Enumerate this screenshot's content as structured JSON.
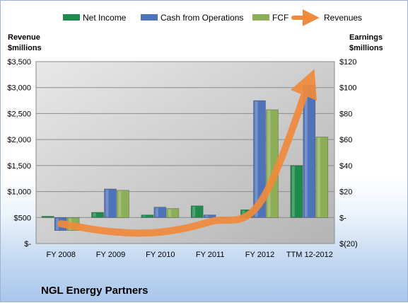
{
  "chart_data": {
    "type": "bar",
    "title": "NGL Energy Partners",
    "categories": [
      "FY 2008",
      "FY 2009",
      "FY 2010",
      "FY 2011",
      "FY 2012",
      "TTM 12-2012"
    ],
    "left_axis": {
      "label_line1": "Revenue",
      "label_line2": "$millions",
      "ylim": [
        0,
        3500
      ],
      "ticks": [
        {
          "value": 0,
          "label": "$-"
        },
        {
          "value": 500,
          "label": "$500"
        },
        {
          "value": 1000,
          "label": "$1,000"
        },
        {
          "value": 1500,
          "label": "$1,500"
        },
        {
          "value": 2000,
          "label": "$2,000"
        },
        {
          "value": 2500,
          "label": "$2,500"
        },
        {
          "value": 3000,
          "label": "$3,000"
        },
        {
          "value": 3500,
          "label": "$3,500"
        }
      ]
    },
    "right_axis": {
      "label_line1": "Earnings",
      "label_line2": "$millions",
      "ylim": [
        -20,
        120
      ],
      "ticks": [
        {
          "value": -20,
          "label": "$(20)"
        },
        {
          "value": 0,
          "label": "$-"
        },
        {
          "value": 20,
          "label": "$20"
        },
        {
          "value": 40,
          "label": "$40"
        },
        {
          "value": 60,
          "label": "$60"
        },
        {
          "value": 80,
          "label": "$80"
        },
        {
          "value": 100,
          "label": "$100"
        },
        {
          "value": 120,
          "label": "$120"
        }
      ]
    },
    "series": [
      {
        "name": "Net Income",
        "axis": "right",
        "color": "#1f8a4c",
        "values": [
          1,
          4,
          2,
          9,
          6,
          40
        ]
      },
      {
        "name": "Cash from Operations",
        "axis": "right",
        "color": "#4f73b8",
        "values": [
          -10,
          22,
          8,
          2,
          90,
          102
        ]
      },
      {
        "name": "FCF",
        "axis": "right",
        "color": "#8cae57",
        "values": [
          -10,
          21,
          7,
          0,
          83,
          62
        ]
      },
      {
        "name": "Revenues",
        "axis": "left",
        "type": "line",
        "color": "#f08a3c",
        "values": [
          380,
          230,
          220,
          420,
          780,
          3130
        ]
      }
    ],
    "legend_position": "top",
    "grid": true
  }
}
